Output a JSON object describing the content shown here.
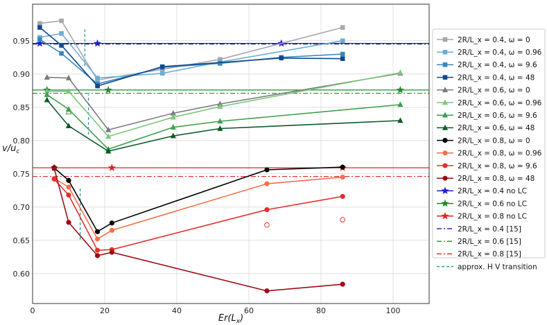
{
  "chart_data": {
    "type": "line",
    "xlabel": "Er(L_x)",
    "ylabel": "v/u_c",
    "xlim": [
      0,
      110
    ],
    "ylim": [
      0.555,
      1.005
    ],
    "grid": true,
    "legend_position": "right",
    "x_ticks": [
      "0",
      "20",
      "40",
      "60",
      "80",
      "100"
    ],
    "y_ticks": [
      "0.60",
      "0.65",
      "0.70",
      "0.75",
      "0.80",
      "0.85",
      "0.90",
      "0.95"
    ],
    "series": [
      {
        "name": "2R/L_x = 0.4, ω = 0",
        "color": "#a6a6ad",
        "marker": "square",
        "style": "solid",
        "x": [
          2,
          8,
          18,
          36,
          52,
          86
        ],
        "y": [
          0.976,
          0.98,
          0.891,
          0.907,
          0.922,
          0.97
        ]
      },
      {
        "name": "2R/L_x = 0.4, ω = 0.96",
        "color": "#6aaed6",
        "marker": "square",
        "style": "solid",
        "x": [
          2,
          8,
          18,
          36,
          52,
          86
        ],
        "y": [
          0.955,
          0.961,
          0.894,
          0.901,
          0.918,
          0.95
        ]
      },
      {
        "name": "2R/L_x = 0.4, ω = 9.6",
        "color": "#3787c0",
        "marker": "square",
        "style": "solid",
        "x": [
          2,
          8,
          18,
          36,
          52,
          69,
          86
        ],
        "y": [
          0.952,
          0.931,
          0.885,
          0.91,
          0.916,
          0.925,
          0.93
        ]
      },
      {
        "name": "2R/L_x = 0.4, ω = 48",
        "color": "#0e4a8c",
        "marker": "square",
        "style": "solid",
        "x": [
          2,
          8,
          18,
          36,
          69,
          86
        ],
        "y": [
          0.97,
          0.943,
          0.882,
          0.911,
          0.924,
          0.923
        ]
      },
      {
        "name": "2R/L_x = 0.6, ω = 0",
        "color": "#7a7a82",
        "marker": "triangle",
        "style": "solid",
        "x": [
          4,
          10,
          21,
          39,
          52,
          102
        ],
        "y": [
          0.895,
          0.894,
          0.816,
          0.841,
          0.855,
          0.901
        ]
      },
      {
        "name": "2R/L_x = 0.6, ω = 0.96",
        "color": "#7bc87c",
        "marker": "triangle",
        "style": "solid",
        "x": [
          4,
          10,
          21,
          39,
          52,
          102
        ],
        "y": [
          0.874,
          0.874,
          0.806,
          0.835,
          0.851,
          0.902
        ]
      },
      {
        "name": "2R/L_x = 0.6, ω = 9.6",
        "color": "#3d9f4e",
        "marker": "triangle",
        "style": "solid",
        "x": [
          4,
          10,
          21,
          39,
          52,
          102
        ],
        "y": [
          0.869,
          0.847,
          0.787,
          0.82,
          0.829,
          0.854
        ]
      },
      {
        "name": "2R/L_x = 0.6, ω = 48",
        "color": "#0b5a2b",
        "marker": "triangle",
        "style": "solid",
        "x": [
          4,
          10,
          21,
          39,
          52,
          102
        ],
        "y": [
          0.861,
          0.822,
          0.784,
          0.807,
          0.818,
          0.83
        ]
      },
      {
        "name": "2R/L_x = 0.8, ω = 0",
        "color": "#000000",
        "marker": "circle",
        "style": "solid",
        "x": [
          6,
          10,
          18,
          22,
          65,
          86
        ],
        "y": [
          0.759,
          0.74,
          0.663,
          0.676,
          0.756,
          0.76
        ]
      },
      {
        "name": "2R/L_x = 0.8, ω = 0.96",
        "color": "#f5704d",
        "marker": "circle",
        "style": "solid",
        "x": [
          6,
          10,
          18,
          22,
          65,
          86
        ],
        "y": [
          0.743,
          0.73,
          0.652,
          0.665,
          0.735,
          0.745
        ]
      },
      {
        "name": "2R/L_x = 0.8, ω = 9.6",
        "color": "#e0322c",
        "marker": "circle",
        "style": "solid",
        "x": [
          6,
          10,
          18,
          22,
          65,
          86
        ],
        "y": [
          0.742,
          0.718,
          0.635,
          0.636,
          0.696,
          0.716
        ]
      },
      {
        "name": "2R/L_x = 0.8, ω = 48",
        "color": "#9c0d13",
        "marker": "circle",
        "style": "solid",
        "x": [
          6,
          10,
          18,
          22,
          65,
          86
        ],
        "y": [
          0.758,
          0.677,
          0.627,
          0.632,
          0.574,
          0.584
        ]
      },
      {
        "name": "2R/L_x = 0.4 no LC",
        "color": "#1c1cd6",
        "marker": "star",
        "style": "solid",
        "type": "hline",
        "y": 0.946,
        "star_x": [
          2,
          18,
          69
        ]
      },
      {
        "name": "2R/L_x = 0.6 no LC",
        "color": "#1f8a2a",
        "marker": "star",
        "style": "solid",
        "type": "hline",
        "y": 0.876,
        "star_x": [
          4,
          21,
          102
        ]
      },
      {
        "name": "2R/L_x = 0.8 no LC",
        "color": "#e02222",
        "marker": "star",
        "style": "solid",
        "type": "hline",
        "y": 0.759,
        "star_x": [
          6,
          22,
          86
        ]
      },
      {
        "name": "2R/L_x = 0.4 [15]",
        "color": "#2a2aa6",
        "marker": "none",
        "style": "dashdot",
        "type": "hline",
        "y": 0.945
      },
      {
        "name": "2R/L_x = 0.6 [15]",
        "color": "#2f9a3a",
        "marker": "none",
        "style": "dashdot",
        "type": "hline",
        "y": 0.871
      },
      {
        "name": "2R/L_x = 0.8 [15]",
        "color": "#e03030",
        "marker": "none",
        "style": "dashdot",
        "type": "hline",
        "y": 0.746
      },
      {
        "name": "approx. H V transition",
        "color": "#2a9aa6",
        "marker": "none",
        "style": "dashed",
        "type": "vsegments",
        "segments": [
          {
            "x": 14.5,
            "y": [
              0.912,
              0.968
            ]
          },
          {
            "x": 15.5,
            "y": [
              0.809,
              0.869
            ]
          },
          {
            "x": 13.2,
            "y": [
              0.651,
              0.729
            ]
          }
        ]
      }
    ],
    "hollow_markers": [
      {
        "x": 10,
        "y": 0.843,
        "marker": "triangle",
        "color": "#3d9f4e"
      },
      {
        "x": 65,
        "y": 0.673,
        "marker": "circle",
        "color": "#e0322c"
      },
      {
        "x": 86,
        "y": 0.681,
        "marker": "circle",
        "color": "#e0322c"
      }
    ]
  }
}
